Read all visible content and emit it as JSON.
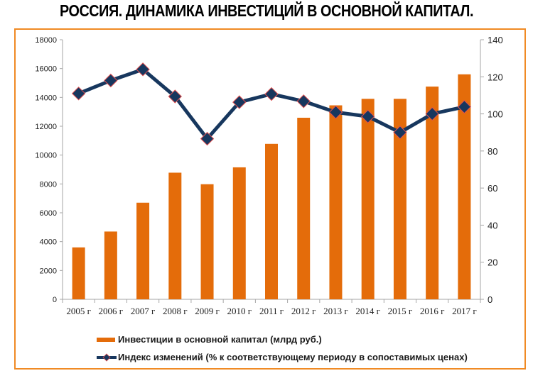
{
  "title": "РОССИЯ. ДИНАМИКА ИНВЕСТИЦИЙ В ОСНОВНОЙ КАПИТАЛ.",
  "colors": {
    "bar": "#e46c0a",
    "line": "#17375e",
    "marker_edge": "#e05050",
    "frame": "#f08a24",
    "axis": "#a6a6a6"
  },
  "chart_data": {
    "type": "bar+line",
    "categories": [
      "2005 г",
      "2006 г",
      "2007 г",
      "2008 г",
      "2009 г",
      "2010 г",
      "2011 г",
      "2012 г",
      "2013 г",
      "2014 г",
      "2015 г",
      "2016 г",
      "2017 г"
    ],
    "series": [
      {
        "name": "Инвестиции в основной капитал (млрд  руб.)",
        "type": "bar",
        "axis": "left",
        "values": [
          3600,
          4700,
          6700,
          8780,
          7980,
          9150,
          10780,
          12590,
          13450,
          13900,
          13900,
          14750,
          15600
        ]
      },
      {
        "name": "Индекс изменений (% к соответствующему периоду в сопоставимых ценах)",
        "type": "line",
        "axis": "right",
        "marker": "diamond",
        "values": [
          111,
          118,
          124,
          109.4,
          86.6,
          106.3,
          110.7,
          106.8,
          100.9,
          98.6,
          90,
          100,
          103.8
        ]
      }
    ],
    "y_left": {
      "range": [
        0,
        18000
      ],
      "ticks": [
        "0",
        "2000",
        "4000",
        "6000",
        "8000",
        "10000",
        "12000",
        "14000",
        "16000",
        "18000"
      ]
    },
    "y_right": {
      "range": [
        0,
        140
      ],
      "ticks": [
        "0",
        "20",
        "40",
        "60",
        "80",
        "100",
        "120",
        "140"
      ]
    },
    "grid": false,
    "legend_placement": "bottom"
  }
}
